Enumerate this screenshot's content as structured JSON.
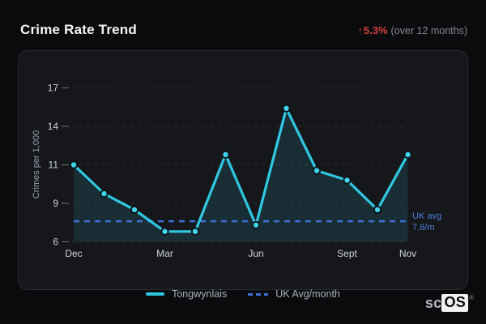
{
  "header": {
    "title": "Crime Rate Trend",
    "trend_arrow": "↑",
    "trend_value": "5.3%",
    "trend_context": "(over 12 months)"
  },
  "chart_data": {
    "type": "line",
    "ylabel": "Crimes per 1,000",
    "y_ticks": [
      6,
      9,
      11,
      14,
      17
    ],
    "x_ticks": [
      {
        "index": 0,
        "label": "Dec"
      },
      {
        "index": 3,
        "label": "Mar"
      },
      {
        "index": 6,
        "label": "Jun"
      },
      {
        "index": 9,
        "label": "Sept"
      },
      {
        "index": 11,
        "label": "Nov"
      }
    ],
    "series": [
      {
        "name": "Tongwynlais",
        "values": [
          11.0,
          9.5,
          8.5,
          6.8,
          6.8,
          11.8,
          7.3,
          15.4,
          10.7,
          10.2,
          8.5,
          11.8
        ]
      }
    ],
    "reference_line": {
      "name": "UK Avg/month",
      "value": 7.6,
      "label_line1": "UK avg",
      "label_line2": "7.6/m"
    },
    "grid": "dashed horizontal",
    "legend_position": "bottom center"
  },
  "legend": [
    {
      "label": "Tongwynlais",
      "style": "solid"
    },
    {
      "label": "UK Avg/month",
      "style": "dashed"
    }
  ],
  "branding": {
    "prefix": "sc",
    "suffix": "OS",
    "registered": "®"
  },
  "colors": {
    "accent_cyan": "#2fc8e2",
    "accent_blue": "#3d6fd6",
    "trend_red": "#d6403c",
    "area_fill": "rgba(47,200,226,0.13)",
    "tick_text": "#ced3da",
    "axis_title": "#99a0a9",
    "grid_line": "rgba(255,255,255,0.10)"
  }
}
